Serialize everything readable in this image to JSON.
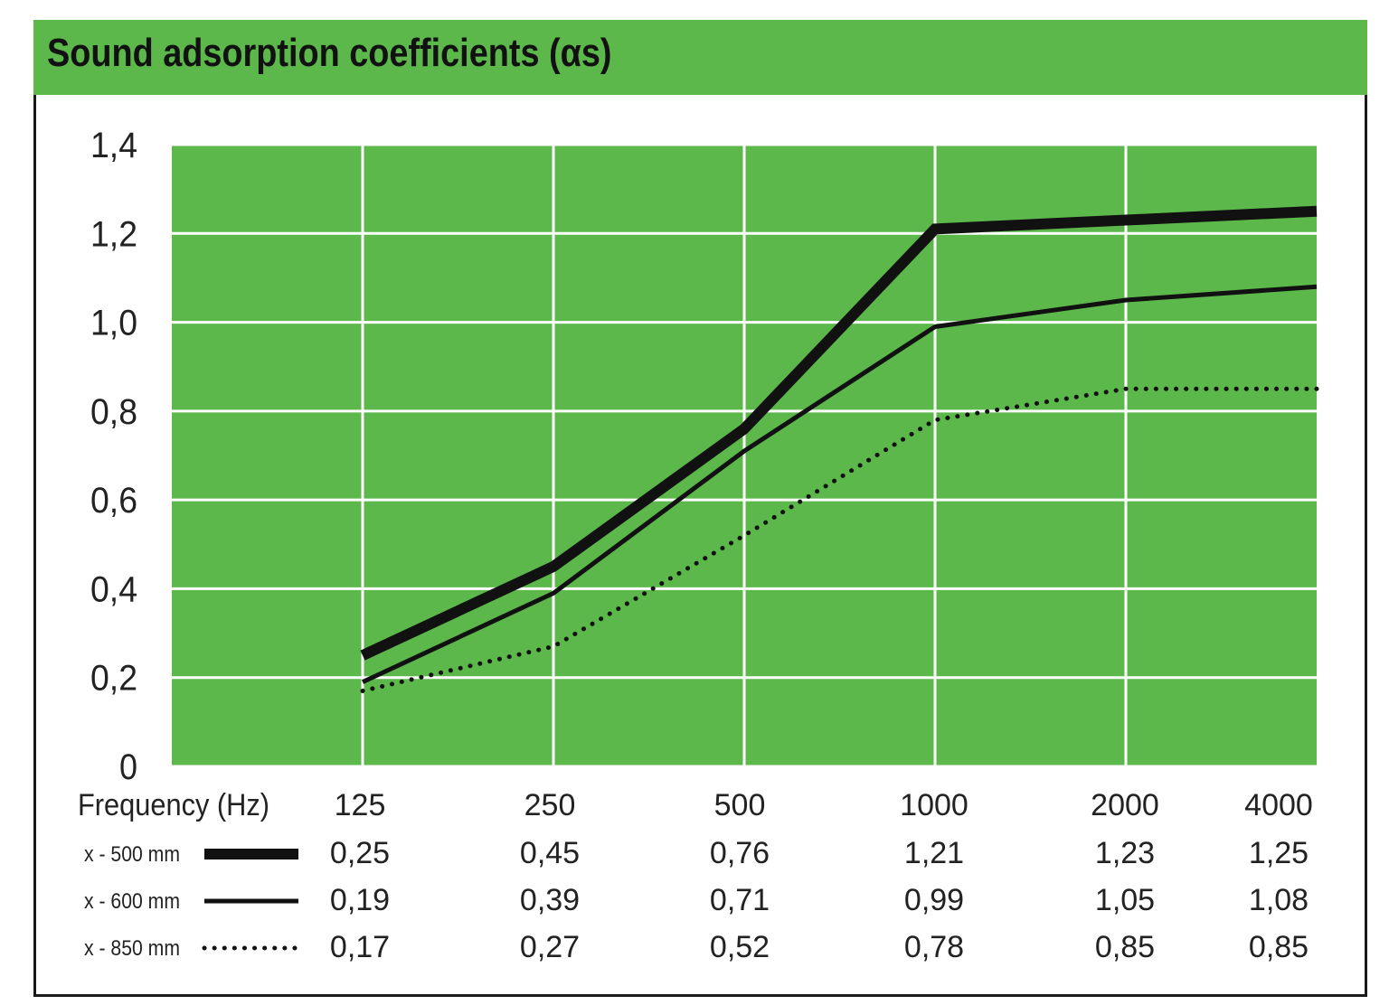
{
  "chart_data": {
    "type": "line",
    "title": "Sound adsorption coefficients (αs)",
    "xlabel": "Frequency (Hz)",
    "categories": [
      "125",
      "250",
      "500",
      "1000",
      "2000",
      "4000"
    ],
    "yticks": [
      "0",
      "0,2",
      "0,4",
      "0,6",
      "0,8",
      "1,0",
      "1,2",
      "1,4"
    ],
    "ylim": [
      0,
      1.4
    ],
    "grid": true,
    "series": [
      {
        "name": "x - 500 mm",
        "style": "thick",
        "values": [
          0.25,
          0.45,
          0.76,
          1.21,
          1.23,
          1.25
        ],
        "labels": [
          "0,25",
          "0,45",
          "0,76",
          "1,21",
          "1,23",
          "1,25"
        ]
      },
      {
        "name": "x - 600 mm",
        "style": "thin",
        "values": [
          0.19,
          0.39,
          0.71,
          0.99,
          1.05,
          1.08
        ],
        "labels": [
          "0,19",
          "0,39",
          "0,71",
          "0,99",
          "1,05",
          "1,08"
        ]
      },
      {
        "name": "x - 850 mm",
        "style": "dotted",
        "values": [
          0.17,
          0.27,
          0.52,
          0.78,
          0.85,
          0.85
        ],
        "labels": [
          "0,17",
          "0,27",
          "0,52",
          "0,78",
          "0,85",
          "0,85"
        ]
      }
    ],
    "colors": {
      "plot_background": "#5cb84a",
      "grid": "#ffffff",
      "line": "#111111",
      "header": "#5cb84a"
    }
  }
}
